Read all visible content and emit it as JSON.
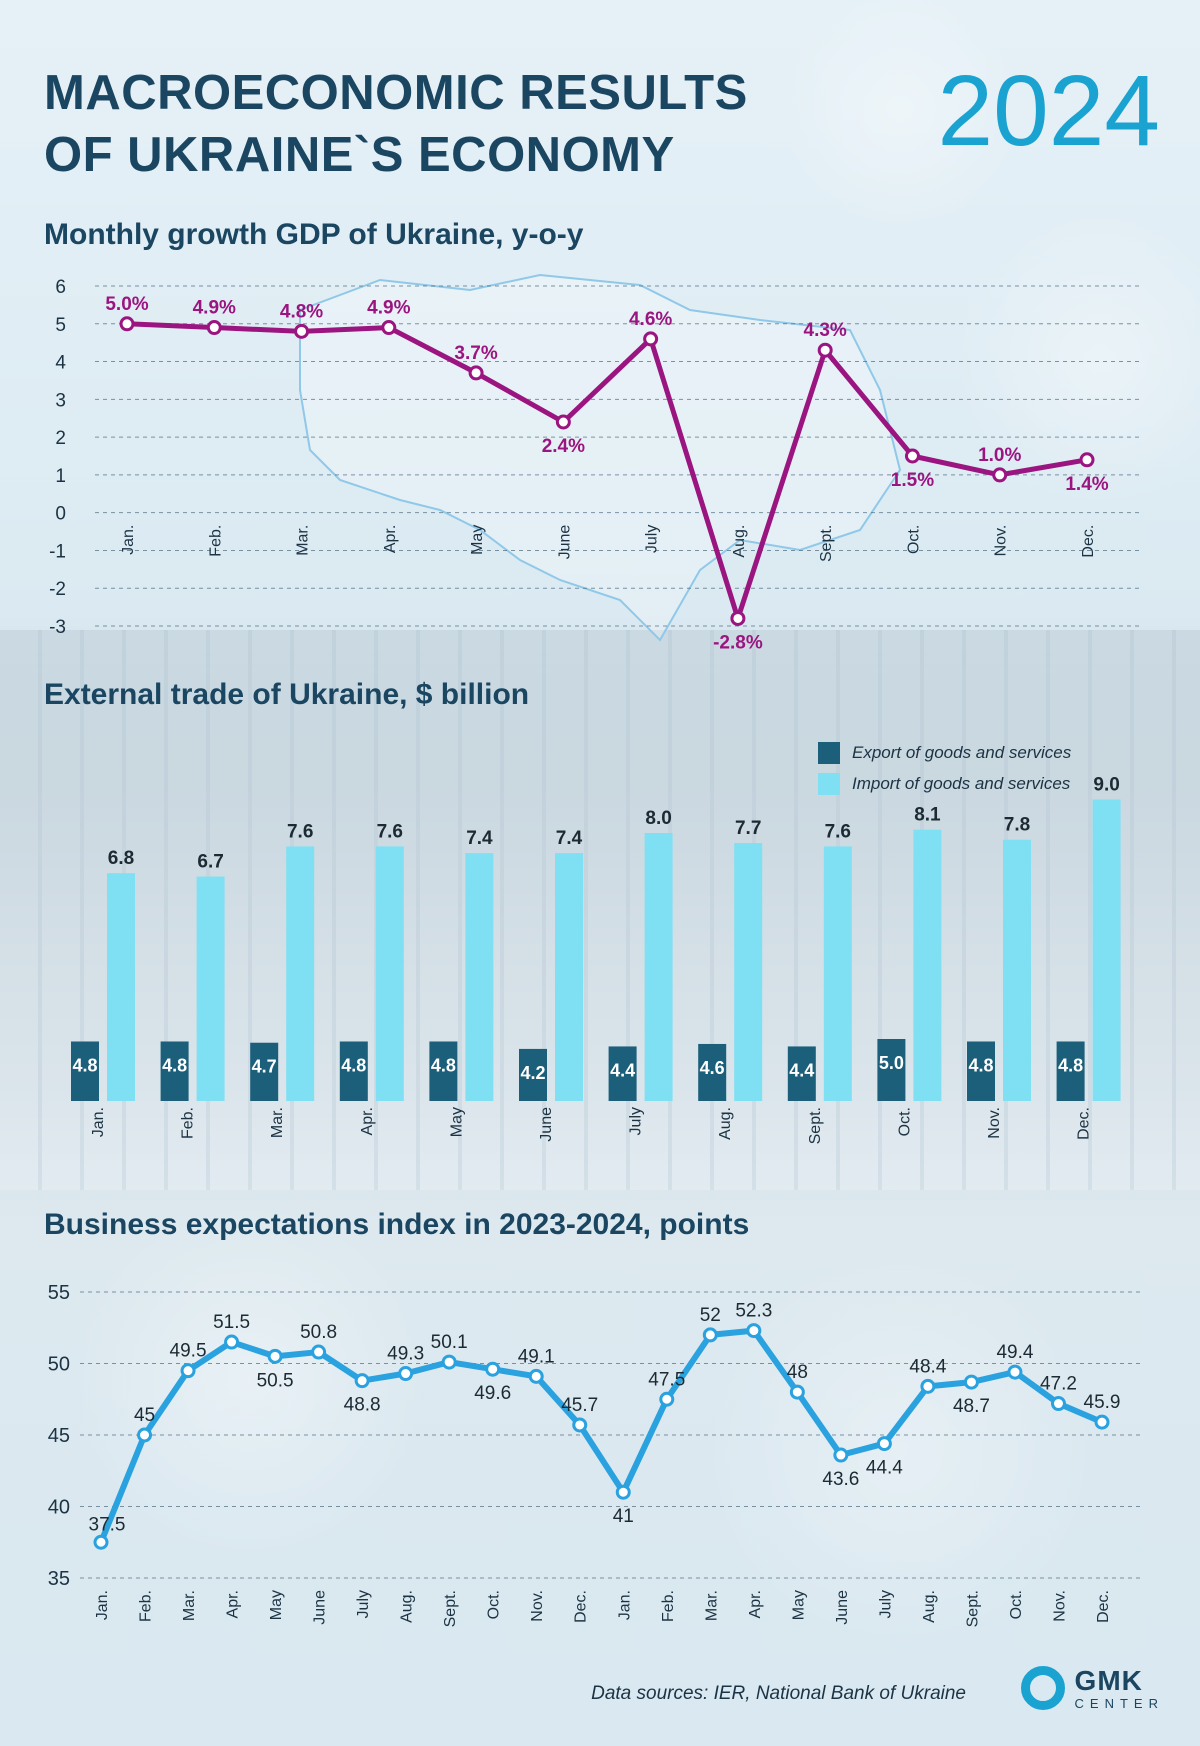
{
  "header": {
    "title_line1": "MACROECONOMIC RESULTS",
    "title_line2": "OF UKRAINE`S ECONOMY",
    "year": "2024"
  },
  "gdp_chart": {
    "title": "Monthly growth GDP of Ukraine, y-o-y"
  },
  "trade_chart": {
    "title": "External trade of Ukraine, $ billion",
    "legend_export": "Export of goods and services",
    "legend_import": "Import of goods and services"
  },
  "bei_chart": {
    "title": "Business expectations index in 2023-2024, points"
  },
  "footer": {
    "sources": "Data sources:  IER, National Bank of Ukraine",
    "logo_main": "GMK",
    "logo_sub": "CENTER"
  },
  "colors": {
    "gdp_line": "#9b1580",
    "export_bar": "#1b5f7a",
    "import_bar": "#7fe0f4",
    "bei_line": "#2aa2df",
    "title": "#1b4661",
    "accent": "#1aa3d1"
  },
  "chart_data": [
    {
      "type": "line",
      "title": "Monthly growth GDP of Ukraine, y-o-y",
      "categories": [
        "Jan.",
        "Feb.",
        "Mar.",
        "Apr.",
        "May",
        "June",
        "July",
        "Aug.",
        "Sept.",
        "Oct.",
        "Nov.",
        "Dec."
      ],
      "values": [
        5.0,
        4.9,
        4.8,
        4.9,
        3.7,
        2.4,
        4.6,
        -2.8,
        4.3,
        1.5,
        1.0,
        1.4
      ],
      "labels": [
        "5.0%",
        "4.9%",
        "4.8%",
        "4.9%",
        "3.7%",
        "2.4%",
        "4.6%",
        "-2.8%",
        "4.3%",
        "1.5%",
        "1.0%",
        "1.4%"
      ],
      "yticks": [
        "6",
        "5",
        "4",
        "3",
        "2",
        "1",
        "0",
        "-1",
        "-2",
        "-3"
      ],
      "ylim": [
        -3,
        6
      ],
      "unit": "%"
    },
    {
      "type": "bar",
      "title": "External trade of Ukraine, $ billion",
      "categories": [
        "Jan.",
        "Feb.",
        "Mar.",
        "Apr.",
        "May",
        "June",
        "July",
        "Aug.",
        "Sept.",
        "Oct.",
        "Nov.",
        "Dec."
      ],
      "series": [
        {
          "name": "Export of goods and services",
          "values": [
            4.8,
            4.8,
            4.7,
            4.8,
            4.8,
            4.2,
            4.4,
            4.6,
            4.4,
            5.0,
            4.8,
            4.8
          ],
          "labels": [
            "4.8",
            "4.8",
            "4.7",
            "4.8",
            "4.8",
            "4.2",
            "4.4",
            "4.6",
            "4.4",
            "5.0",
            "4.8",
            "4.8"
          ]
        },
        {
          "name": "Import of goods and services",
          "values": [
            6.8,
            6.7,
            7.6,
            7.6,
            7.4,
            7.4,
            8.0,
            7.7,
            7.6,
            8.1,
            7.8,
            9.0
          ],
          "labels": [
            "6.8",
            "6.7",
            "7.6",
            "7.6",
            "7.4",
            "7.4",
            "8.0",
            "7.7",
            "7.6",
            "8.1",
            "7.8",
            "9.0"
          ]
        }
      ],
      "legend": "top-right"
    },
    {
      "type": "line",
      "title": "Business expectations index in 2023-2024, points",
      "categories": [
        "Jan.",
        "Feb.",
        "Mar.",
        "Apr.",
        "May",
        "June",
        "July",
        "Aug.",
        "Sept.",
        "Oct.",
        "Nov.",
        "Dec.",
        "Jan.",
        "Feb.",
        "Mar.",
        "Apr.",
        "May",
        "June",
        "July",
        "Aug.",
        "Sept.",
        "Oct.",
        "Nov.",
        "Dec."
      ],
      "values": [
        37.5,
        45,
        49.5,
        51.5,
        50.5,
        50.8,
        48.8,
        49.3,
        50.1,
        49.6,
        49.1,
        45.7,
        41,
        47.5,
        52,
        52.3,
        48,
        43.6,
        44.4,
        48.4,
        48.7,
        49.4,
        47.2,
        45.9
      ],
      "labels": [
        "37.5",
        "45",
        "49.5",
        "51.5",
        "50.5",
        "50.8",
        "48.8",
        "49.3",
        "50.1",
        "49.6",
        "49.1",
        "45.7",
        "41",
        "47.5",
        "52",
        "52.3",
        "48",
        "43.6",
        "44.4",
        "48.4",
        "48.7",
        "49.4",
        "47.2",
        "45.9"
      ],
      "yticks": [
        "55",
        "50",
        "45",
        "40",
        "35"
      ],
      "ylim": [
        35,
        55
      ]
    }
  ]
}
